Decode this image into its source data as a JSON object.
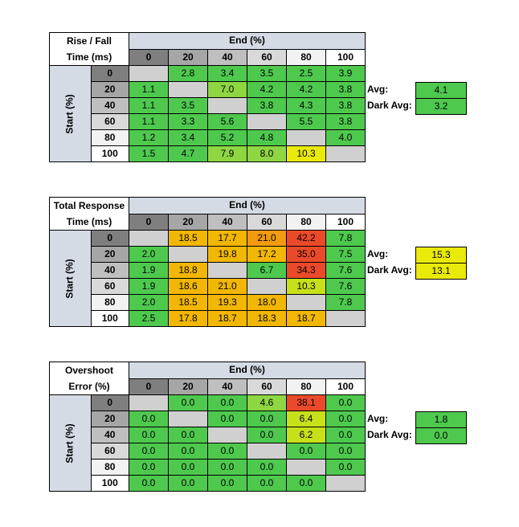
{
  "colors": {
    "header_blue": "#d5dbe4",
    "shade_0": "#7f7f7f",
    "shade_20": "#a6a6a6",
    "shade_40": "#bfbfbf",
    "shade_60": "#d9d9d9",
    "shade_80": "#f2f2f2",
    "shade_100": "#ffffff",
    "diag": "#d0d0d0",
    "green": "#4ec94e",
    "lightgreen": "#8ed642",
    "yellowgreen": "#c6e01a",
    "yellow": "#eaea0a",
    "orange": "#f2b705",
    "deeporange": "#f29a10",
    "red": "#ea4a2a"
  },
  "tables": [
    {
      "corner_line1": "Rise / Fall",
      "corner_line2": "Time (ms)",
      "end_label": "End (%)",
      "start_label": "Start (%)",
      "cols": [
        "0",
        "20",
        "40",
        "60",
        "80",
        "100"
      ],
      "rows": [
        {
          "label": "0",
          "cells": [
            "",
            "2.8",
            "3.4",
            "3.5",
            "2.5",
            "3.9"
          ],
          "colors": [
            "diag",
            "green",
            "green",
            "green",
            "green",
            "green"
          ]
        },
        {
          "label": "20",
          "cells": [
            "1.1",
            "",
            "7.0",
            "4.2",
            "4.2",
            "3.8"
          ],
          "colors": [
            "green",
            "diag",
            "lightgreen",
            "green",
            "green",
            "green"
          ]
        },
        {
          "label": "40",
          "cells": [
            "1.1",
            "3.5",
            "",
            "3.8",
            "4.3",
            "3.8"
          ],
          "colors": [
            "green",
            "green",
            "diag",
            "green",
            "green",
            "green"
          ]
        },
        {
          "label": "60",
          "cells": [
            "1.1",
            "3.3",
            "5.6",
            "",
            "5.5",
            "3.8"
          ],
          "colors": [
            "green",
            "green",
            "green",
            "diag",
            "green",
            "green"
          ]
        },
        {
          "label": "80",
          "cells": [
            "1.2",
            "3.4",
            "5.2",
            "4.8",
            "",
            "4.0"
          ],
          "colors": [
            "green",
            "green",
            "green",
            "green",
            "diag",
            "green"
          ]
        },
        {
          "label": "100",
          "cells": [
            "1.5",
            "4.7",
            "7.9",
            "8.0",
            "10.3",
            ""
          ],
          "colors": [
            "green",
            "green",
            "lightgreen",
            "lightgreen",
            "yellow",
            "diag"
          ]
        }
      ],
      "avg_label": "Avg:",
      "avg_value": "4.1",
      "avg_color": "green",
      "dark_avg_label": "Dark Avg:",
      "dark_avg_value": "3.2",
      "dark_avg_color": "green"
    },
    {
      "corner_line1": "Total Response",
      "corner_line2": "Time (ms)",
      "end_label": "End (%)",
      "start_label": "Start (%)",
      "cols": [
        "0",
        "20",
        "40",
        "60",
        "80",
        "100"
      ],
      "rows": [
        {
          "label": "0",
          "cells": [
            "",
            "18.5",
            "17.7",
            "21.0",
            "42.2",
            "7.8"
          ],
          "colors": [
            "diag",
            "orange",
            "orange",
            "deeporange",
            "red",
            "green"
          ]
        },
        {
          "label": "20",
          "cells": [
            "2.0",
            "",
            "19.8",
            "17.2",
            "35.0",
            "7.5"
          ],
          "colors": [
            "green",
            "diag",
            "orange",
            "orange",
            "red",
            "green"
          ]
        },
        {
          "label": "40",
          "cells": [
            "1.9",
            "18.8",
            "",
            "6.7",
            "34.3",
            "7.6"
          ],
          "colors": [
            "green",
            "orange",
            "diag",
            "green",
            "red",
            "green"
          ]
        },
        {
          "label": "60",
          "cells": [
            "1.9",
            "18.6",
            "21.0",
            "",
            "10.3",
            "7.6"
          ],
          "colors": [
            "green",
            "orange",
            "orange",
            "diag",
            "yellowgreen",
            "green"
          ]
        },
        {
          "label": "80",
          "cells": [
            "2.0",
            "18.5",
            "19.3",
            "18.0",
            "",
            "7.8"
          ],
          "colors": [
            "green",
            "orange",
            "orange",
            "orange",
            "diag",
            "green"
          ]
        },
        {
          "label": "100",
          "cells": [
            "2.5",
            "17.8",
            "18.7",
            "18.3",
            "18.7",
            ""
          ],
          "colors": [
            "green",
            "orange",
            "orange",
            "orange",
            "orange",
            "diag"
          ]
        }
      ],
      "avg_label": "Avg:",
      "avg_value": "15.3",
      "avg_color": "yellow",
      "dark_avg_label": "Dark Avg:",
      "dark_avg_value": "13.1",
      "dark_avg_color": "yellow"
    },
    {
      "corner_line1": "Overshoot",
      "corner_line2": "Error (%)",
      "end_label": "End (%)",
      "start_label": "Start (%)",
      "cols": [
        "0",
        "20",
        "40",
        "60",
        "80",
        "100"
      ],
      "rows": [
        {
          "label": "0",
          "cells": [
            "",
            "0.0",
            "0.0",
            "4.6",
            "38.1",
            "0.0"
          ],
          "colors": [
            "diag",
            "green",
            "green",
            "lightgreen",
            "red",
            "green"
          ]
        },
        {
          "label": "20",
          "cells": [
            "0.0",
            "",
            "0.0",
            "0.0",
            "6.4",
            "0.0"
          ],
          "colors": [
            "green",
            "diag",
            "green",
            "green",
            "yellowgreen",
            "green"
          ]
        },
        {
          "label": "40",
          "cells": [
            "0.0",
            "0.0",
            "",
            "0.0",
            "6.2",
            "0.0"
          ],
          "colors": [
            "green",
            "green",
            "diag",
            "green",
            "yellowgreen",
            "green"
          ]
        },
        {
          "label": "60",
          "cells": [
            "0.0",
            "0.0",
            "0.0",
            "",
            "0.0",
            "0.0"
          ],
          "colors": [
            "green",
            "green",
            "green",
            "diag",
            "green",
            "green"
          ]
        },
        {
          "label": "80",
          "cells": [
            "0.0",
            "0.0",
            "0.0",
            "0.0",
            "",
            "0.0"
          ],
          "colors": [
            "green",
            "green",
            "green",
            "green",
            "diag",
            "green"
          ]
        },
        {
          "label": "100",
          "cells": [
            "0.0",
            "0.0",
            "0.0",
            "0.0",
            "0.0",
            ""
          ],
          "colors": [
            "green",
            "green",
            "green",
            "green",
            "green",
            "diag"
          ]
        }
      ],
      "avg_label": "Avg:",
      "avg_value": "1.8",
      "avg_color": "green",
      "dark_avg_label": "Dark Avg:",
      "dark_avg_value": "0.0",
      "dark_avg_color": "green"
    }
  ]
}
